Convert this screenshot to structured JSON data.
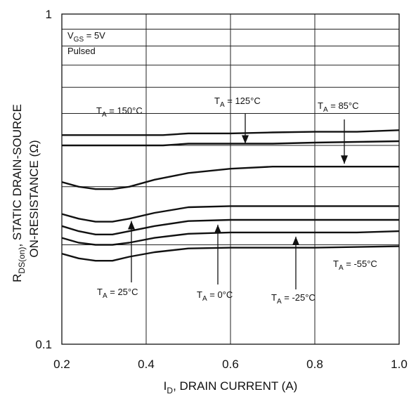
{
  "chart_data": {
    "type": "line",
    "xlabel_main": "I",
    "xlabel_sub": "D",
    "xlabel_rest": ", DRAIN CURRENT (A)",
    "ylabel_line1_main": "R",
    "ylabel_line1_sub": "DS(on)",
    "ylabel_line1_rest": ", STATIC DRAIN-SOURCE",
    "ylabel_line2": "ON-RESISTANCE (Ω)",
    "x_scale": "linear",
    "y_scale": "log",
    "xlim": [
      0.2,
      1.0
    ],
    "ylim": [
      0.1,
      1
    ],
    "x_ticks": [
      "0.2",
      "0.4",
      "0.6",
      "0.8",
      "1.0"
    ],
    "y_ticks": [
      "0.1",
      "1"
    ],
    "grid": true,
    "conditions": {
      "vgs_main": "V",
      "vgs_sub": "GS",
      "vgs_rest": " = 5V",
      "pulsed": "Pulsed"
    },
    "series": [
      {
        "name": "T_A = 150°C",
        "x": [
          0.2,
          0.3,
          0.44,
          0.5,
          0.6,
          0.7,
          0.8,
          0.9,
          1.0
        ],
        "y": [
          0.43,
          0.43,
          0.43,
          0.435,
          0.435,
          0.438,
          0.44,
          0.44,
          0.445
        ]
      },
      {
        "name": "T_A = 125°C",
        "x": [
          0.2,
          0.3,
          0.44,
          0.5,
          0.6,
          0.7,
          0.8,
          0.9,
          1.0
        ],
        "y": [
          0.4,
          0.4,
          0.4,
          0.405,
          0.405,
          0.405,
          0.408,
          0.41,
          0.412
        ]
      },
      {
        "name": "T_A = 85°C",
        "x": [
          0.2,
          0.24,
          0.28,
          0.32,
          0.36,
          0.42,
          0.5,
          0.6,
          0.7,
          0.8,
          0.9,
          1.0
        ],
        "y": [
          0.31,
          0.3,
          0.295,
          0.295,
          0.3,
          0.315,
          0.33,
          0.34,
          0.345,
          0.345,
          0.345,
          0.345
        ]
      },
      {
        "name": "T_A = 25°C",
        "x": [
          0.2,
          0.24,
          0.28,
          0.32,
          0.36,
          0.42,
          0.5,
          0.6,
          0.7,
          0.8,
          0.9,
          1.0
        ],
        "y": [
          0.248,
          0.24,
          0.235,
          0.235,
          0.24,
          0.25,
          0.26,
          0.262,
          0.262,
          0.262,
          0.262,
          0.262
        ]
      },
      {
        "name": "T_A = 0°C",
        "x": [
          0.2,
          0.24,
          0.28,
          0.32,
          0.36,
          0.42,
          0.5,
          0.6,
          0.7,
          0.8,
          0.9,
          1.0
        ],
        "y": [
          0.228,
          0.22,
          0.215,
          0.215,
          0.22,
          0.228,
          0.236,
          0.238,
          0.238,
          0.238,
          0.238,
          0.238
        ]
      },
      {
        "name": "T_A = -25°C",
        "x": [
          0.2,
          0.24,
          0.28,
          0.32,
          0.36,
          0.42,
          0.5,
          0.6,
          0.7,
          0.8,
          0.9,
          1.0
        ],
        "y": [
          0.21,
          0.203,
          0.2,
          0.2,
          0.203,
          0.21,
          0.216,
          0.218,
          0.218,
          0.218,
          0.218,
          0.22
        ]
      },
      {
        "name": "T_A = -55°C",
        "x": [
          0.2,
          0.24,
          0.28,
          0.32,
          0.36,
          0.42,
          0.5,
          0.6,
          0.7,
          0.8,
          0.9,
          1.0
        ],
        "y": [
          0.188,
          0.182,
          0.179,
          0.179,
          0.184,
          0.19,
          0.195,
          0.196,
          0.196,
          0.196,
          0.197,
          0.198
        ]
      }
    ],
    "annotations": [
      {
        "text_main": "T",
        "text_sub": "A",
        "text_rest": " = 150°C",
        "series": "T_A = 150°C",
        "arrow": false,
        "pos": "upper-left"
      },
      {
        "text_main": "T",
        "text_sub": "A",
        "text_rest": " = 125°C",
        "series": "T_A = 125°C",
        "arrow": true,
        "tip": [
          0.635,
          0.401
        ]
      },
      {
        "text_main": "T",
        "text_sub": "A",
        "text_rest": " = 85°C",
        "series": "T_A = 85°C",
        "arrow": true,
        "tip": [
          0.87,
          0.345
        ]
      },
      {
        "text_main": "T",
        "text_sub": "A",
        "text_rest": " = 25°C",
        "series": "T_A = 25°C",
        "arrow": true,
        "tip": [
          0.365,
          0.241
        ]
      },
      {
        "text_main": "T",
        "text_sub": "A",
        "text_rest": " = 0°C",
        "series": "T_A = 0°C",
        "arrow": true,
        "tip": [
          0.57,
          0.237
        ]
      },
      {
        "text_main": "T",
        "text_sub": "A",
        "text_rest": " = -25°C",
        "series": "T_A = -25°C",
        "arrow": true,
        "tip": [
          0.755,
          0.218
        ]
      },
      {
        "text_main": "T",
        "text_sub": "A",
        "text_rest": " = -55°C",
        "series": "T_A = -55°C",
        "arrow": false,
        "pos": "right"
      }
    ]
  }
}
